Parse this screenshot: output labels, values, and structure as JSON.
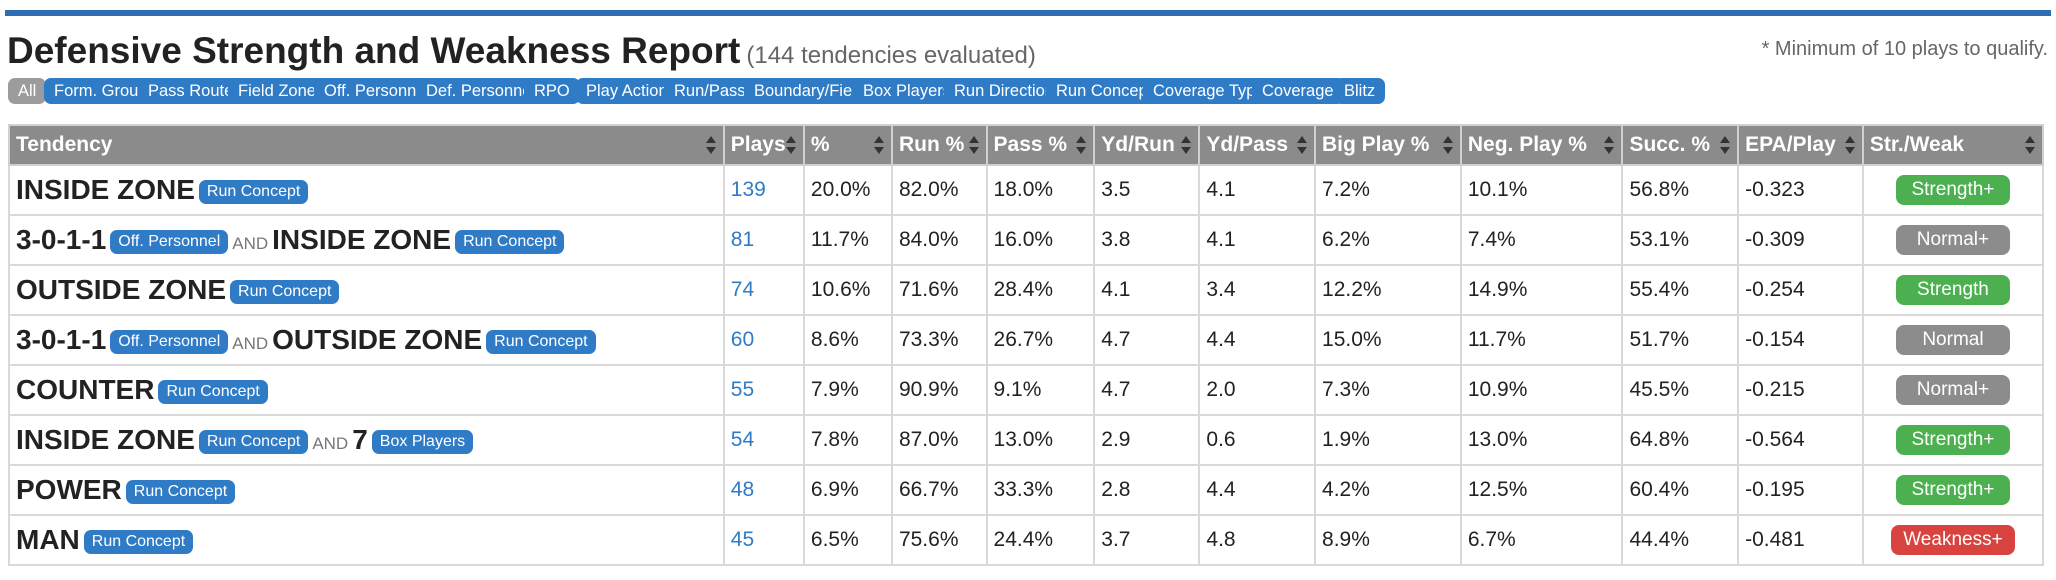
{
  "header": {
    "title": "Defensive Strength and Weakness Report",
    "subtitle": "(144 tendencies evaluated)",
    "note": "* Minimum of 10 plays to qualify."
  },
  "filters": [
    "All",
    "Form. Group",
    "Pass Route",
    "Field Zone",
    "Off. Personnel",
    "Def. Personnel",
    "RPO",
    "Play Action",
    "Run/Pass",
    "Boundary/Field",
    "Box Players",
    "Run Direction",
    "Run Concept",
    "Coverage Type",
    "Coverage",
    "Blitz"
  ],
  "table": {
    "columns": [
      "Tendency",
      "Plays",
      "%",
      "Run %",
      "Pass %",
      "Yd/Run",
      "Yd/Pass",
      "Big Play %",
      "Neg. Play %",
      "Succ. %",
      "EPA/Play",
      "Str./Weak"
    ],
    "rows": [
      {
        "parts": [
          {
            "name": "INSIDE ZONE",
            "tag": "Run Concept"
          }
        ],
        "plays": "139",
        "pct": "20.0%",
        "run": "82.0%",
        "pass": "18.0%",
        "ydrun": "3.5",
        "ydpass": "4.1",
        "big": "7.2%",
        "neg": "10.1%",
        "succ": "56.8%",
        "epa": "-0.323",
        "sw": "Strength+"
      },
      {
        "parts": [
          {
            "name": "3-0-1-1",
            "tag": "Off. Personnel"
          },
          {
            "name": "INSIDE ZONE",
            "tag": "Run Concept"
          }
        ],
        "plays": "81",
        "pct": "11.7%",
        "run": "84.0%",
        "pass": "16.0%",
        "ydrun": "3.8",
        "ydpass": "4.1",
        "big": "6.2%",
        "neg": "7.4%",
        "succ": "53.1%",
        "epa": "-0.309",
        "sw": "Normal+"
      },
      {
        "parts": [
          {
            "name": "OUTSIDE ZONE",
            "tag": "Run Concept"
          }
        ],
        "plays": "74",
        "pct": "10.6%",
        "run": "71.6%",
        "pass": "28.4%",
        "ydrun": "4.1",
        "ydpass": "3.4",
        "big": "12.2%",
        "neg": "14.9%",
        "succ": "55.4%",
        "epa": "-0.254",
        "sw": "Strength"
      },
      {
        "parts": [
          {
            "name": "3-0-1-1",
            "tag": "Off. Personnel"
          },
          {
            "name": "OUTSIDE ZONE",
            "tag": "Run Concept"
          }
        ],
        "plays": "60",
        "pct": "8.6%",
        "run": "73.3%",
        "pass": "26.7%",
        "ydrun": "4.7",
        "ydpass": "4.4",
        "big": "15.0%",
        "neg": "11.7%",
        "succ": "51.7%",
        "epa": "-0.154",
        "sw": "Normal"
      },
      {
        "parts": [
          {
            "name": "COUNTER",
            "tag": "Run Concept"
          }
        ],
        "plays": "55",
        "pct": "7.9%",
        "run": "90.9%",
        "pass": "9.1%",
        "ydrun": "4.7",
        "ydpass": "2.0",
        "big": "7.3%",
        "neg": "10.9%",
        "succ": "45.5%",
        "epa": "-0.215",
        "sw": "Normal+"
      },
      {
        "parts": [
          {
            "name": "INSIDE ZONE",
            "tag": "Run Concept"
          },
          {
            "name": "7",
            "tag": "Box Players"
          }
        ],
        "plays": "54",
        "pct": "7.8%",
        "run": "87.0%",
        "pass": "13.0%",
        "ydrun": "2.9",
        "ydpass": "0.6",
        "big": "1.9%",
        "neg": "13.0%",
        "succ": "64.8%",
        "epa": "-0.564",
        "sw": "Strength+"
      },
      {
        "parts": [
          {
            "name": "POWER",
            "tag": "Run Concept"
          }
        ],
        "plays": "48",
        "pct": "6.9%",
        "run": "66.7%",
        "pass": "33.3%",
        "ydrun": "2.8",
        "ydpass": "4.4",
        "big": "4.2%",
        "neg": "12.5%",
        "succ": "60.4%",
        "epa": "-0.195",
        "sw": "Strength+"
      },
      {
        "parts": [
          {
            "name": "MAN",
            "tag": "Run Concept"
          }
        ],
        "plays": "45",
        "pct": "6.5%",
        "run": "75.6%",
        "pass": "24.4%",
        "ydrun": "3.7",
        "ydpass": "4.8",
        "big": "8.9%",
        "neg": "6.7%",
        "succ": "44.4%",
        "epa": "-0.481",
        "sw": "Weakness+"
      }
    ],
    "and_label": "AND"
  },
  "badge_colors": {
    "Strength+": "#4caf50",
    "Strength": "#4caf50",
    "Normal+": "#8c8c8c",
    "Normal": "#8c8c8c",
    "Weakness+": "#d9433f"
  }
}
